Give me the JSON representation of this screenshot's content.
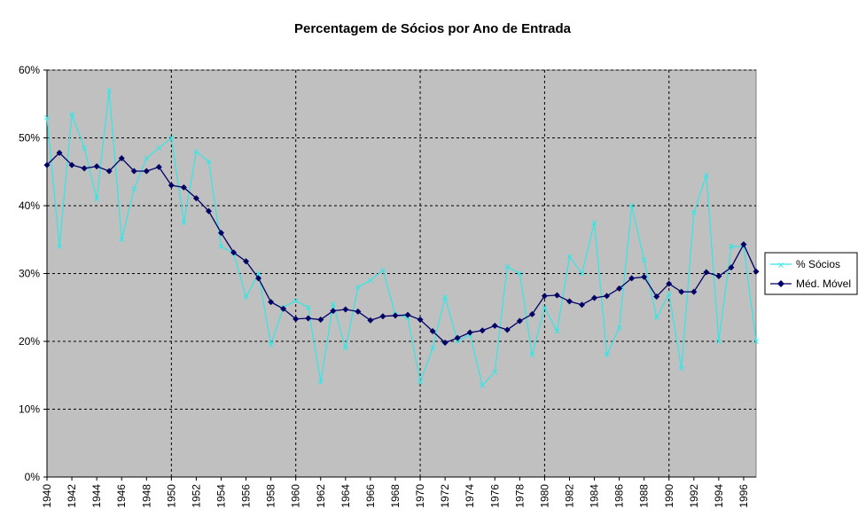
{
  "chart_data": {
    "type": "line",
    "title": "Percentagem de Sócios por Ano de Entrada",
    "xlabel": "",
    "ylabel": "",
    "ylim": [
      0,
      0.6
    ],
    "yticks": [
      0,
      0.1,
      0.2,
      0.3,
      0.4,
      0.5,
      0.6
    ],
    "ytick_labels": [
      "0%",
      "10%",
      "20%",
      "30%",
      "40%",
      "50%",
      "60%"
    ],
    "xlim": [
      1940,
      1997
    ],
    "xtick_labels": [
      "1940",
      "1942",
      "1944",
      "1946",
      "1948",
      "1950",
      "1952",
      "1954",
      "1956",
      "1958",
      "1960",
      "1962",
      "1964",
      "1966",
      "1968",
      "1970",
      "1972",
      "1974",
      "1976",
      "1978",
      "1980",
      "1982",
      "1984",
      "1986",
      "1988",
      "1990",
      "1992",
      "1994",
      "1996"
    ],
    "vgrid_years": [
      1950,
      1960,
      1970,
      1980,
      1990
    ],
    "grid": true,
    "legend_position": "right",
    "x": [
      1940,
      1941,
      1942,
      1943,
      1944,
      1945,
      1946,
      1947,
      1948,
      1949,
      1950,
      1951,
      1952,
      1953,
      1954,
      1955,
      1956,
      1957,
      1958,
      1959,
      1960,
      1961,
      1962,
      1963,
      1964,
      1965,
      1966,
      1967,
      1968,
      1969,
      1970,
      1971,
      1972,
      1973,
      1974,
      1975,
      1976,
      1977,
      1978,
      1979,
      1980,
      1981,
      1982,
      1983,
      1984,
      1985,
      1986,
      1987,
      1988,
      1989,
      1990,
      1991,
      1992,
      1993,
      1994,
      1995,
      1996,
      1997
    ],
    "series": [
      {
        "name": "% Sócios",
        "color": "#33e6e6",
        "marker": "x",
        "values": [
          0.53,
          0.34,
          0.535,
          0.485,
          0.41,
          0.57,
          0.35,
          0.425,
          0.47,
          0.485,
          0.5,
          0.375,
          0.48,
          0.465,
          0.34,
          0.33,
          0.265,
          0.3,
          0.195,
          0.25,
          0.26,
          0.25,
          0.14,
          0.255,
          0.19,
          0.28,
          0.29,
          0.305,
          0.24,
          0.235,
          0.14,
          0.19,
          0.265,
          0.2,
          0.21,
          0.135,
          0.155,
          0.31,
          0.3,
          0.18,
          0.25,
          0.215,
          0.325,
          0.3,
          0.375,
          0.18,
          0.22,
          0.4,
          0.32,
          0.235,
          0.27,
          0.16,
          0.39,
          0.445,
          0.2,
          0.34,
          0.34,
          0.2
        ]
      },
      {
        "name": "Méd. Móvel",
        "color": "#000066",
        "marker": "diamond",
        "values": [
          0.46,
          0.478,
          0.46,
          0.455,
          0.458,
          0.451,
          0.47,
          0.451,
          0.451,
          0.457,
          0.43,
          0.427,
          0.411,
          0.392,
          0.36,
          0.331,
          0.318,
          0.293,
          0.258,
          0.248,
          0.233,
          0.234,
          0.232,
          0.245,
          0.247,
          0.244,
          0.231,
          0.237,
          0.238,
          0.239,
          0.232,
          0.215,
          0.198,
          0.205,
          0.213,
          0.216,
          0.223,
          0.217,
          0.23,
          0.24,
          0.267,
          0.268,
          0.259,
          0.254,
          0.264,
          0.267,
          0.278,
          0.293,
          0.295,
          0.266,
          0.285,
          0.273,
          0.273,
          0.302,
          0.296,
          0.309,
          0.343,
          0.303
        ]
      }
    ]
  }
}
